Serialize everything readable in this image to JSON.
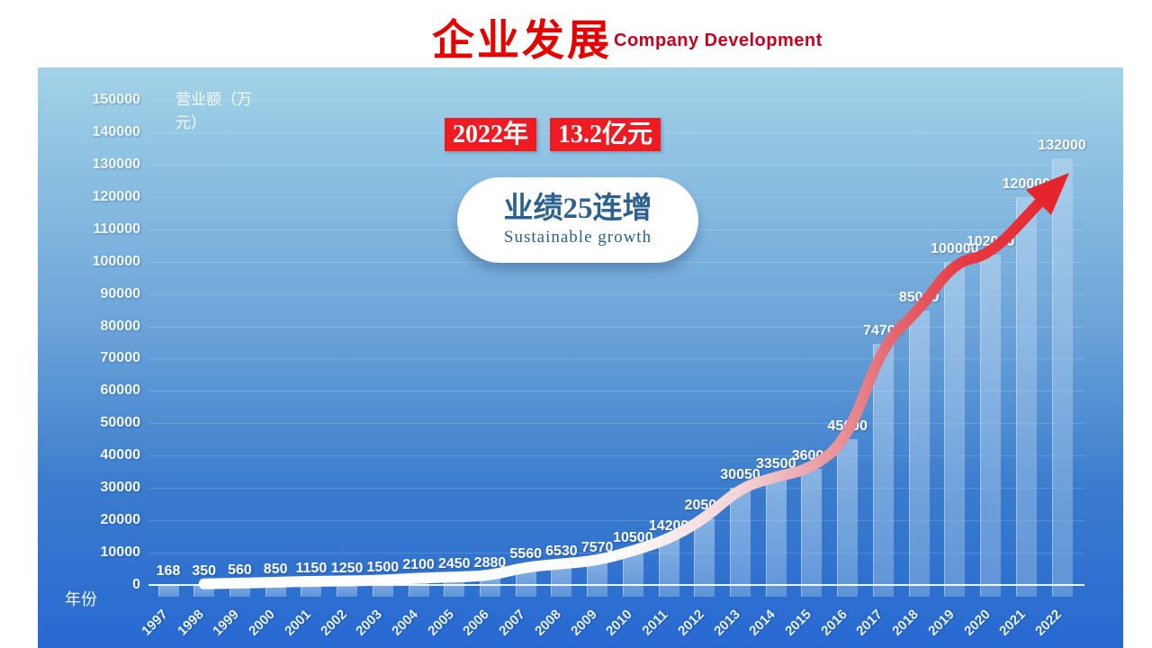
{
  "slide": {
    "title": "企业发展",
    "subtitle": "Company Development"
  },
  "callout": {
    "year": "2022年",
    "amount": "13.2亿元"
  },
  "bubble": {
    "main": "业绩25连增",
    "sub": "Sustainable growth"
  },
  "axis": {
    "y_title": "营业额（万元）",
    "x_title": "年份"
  },
  "chart_data": {
    "type": "bar",
    "title": "企业发展 Company Development",
    "xlabel": "年份",
    "ylabel": "营业额（万元）",
    "categories": [
      "1997",
      "1998",
      "1999",
      "2000",
      "2001",
      "2002",
      "2003",
      "2004",
      "2005",
      "2006",
      "2007",
      "2008",
      "2009",
      "2010",
      "2011",
      "2012",
      "2013",
      "2014",
      "2015",
      "2016",
      "2017",
      "2018",
      "2019",
      "2020",
      "2021",
      "2022"
    ],
    "values": [
      168,
      350,
      560,
      850,
      1150,
      1250,
      1500,
      2100,
      2450,
      2880,
      5560,
      6530,
      7570,
      10500,
      14200,
      20500,
      30050,
      33500,
      36000,
      45000,
      74700,
      85000,
      100000,
      102000,
      120000,
      132000
    ],
    "ylim": [
      0,
      150000
    ],
    "ytick_step": 10000,
    "grid": true,
    "legend": false,
    "data_labels": true,
    "annotations": [
      "2022年 13.2亿元",
      "业绩25连增 Sustainable growth",
      "growth trend arrow from 1998 to 2022, white fading to red"
    ]
  },
  "colors": {
    "title_red": "#e60000",
    "subtitle_red": "#c8001e",
    "callout_bg": "#ee1b23",
    "callout_text": "#ffffff",
    "bubble_text": "#2a618f",
    "panel_top": "#a2d3e8",
    "panel_bottom": "#2769d2",
    "bar_fill": "rgba(150,190,228,0.6)",
    "arrow_start": "#ffffff",
    "arrow_mid": "#ea9aa1",
    "arrow_end": "#e6242c",
    "label_text": "#ffffff"
  }
}
